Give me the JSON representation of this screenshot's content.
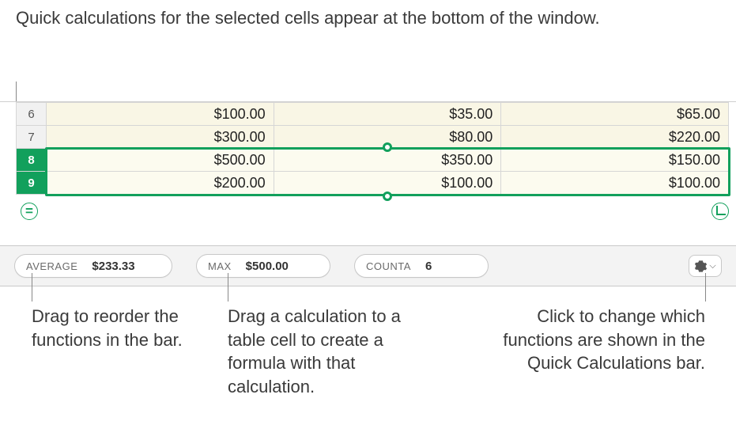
{
  "callouts": {
    "top": "Quick calculations for the selected cells appear at the bottom of the window.",
    "bottom_left": "Drag to reorder the functions in the bar.",
    "bottom_mid": "Drag a calculation to a table cell to create a formula with that calculation.",
    "bottom_right": "Click to change which functions are shown in the Quick Calculations bar."
  },
  "sheet": {
    "rows": [
      {
        "num": "6",
        "selected": false,
        "cells": [
          "$100.00",
          "$35.00",
          "$65.00"
        ]
      },
      {
        "num": "7",
        "selected": false,
        "cells": [
          "$300.00",
          "$80.00",
          "$220.00"
        ]
      },
      {
        "num": "8",
        "selected": true,
        "cells": [
          "$500.00",
          "$350.00",
          "$150.00"
        ]
      },
      {
        "num": "9",
        "selected": true,
        "cells": [
          "$200.00",
          "$100.00",
          "$100.00"
        ]
      }
    ],
    "colors": {
      "cell_bg": "#f9f6e5",
      "hdr_bg": "#f1f1f1",
      "sel_hdr_bg": "#12a05c",
      "border": "#d6d6d6",
      "sel_border": "#12a05c"
    }
  },
  "quickcalc": {
    "pills": [
      {
        "label": "AVERAGE",
        "value": "$233.33"
      },
      {
        "label": "MAX",
        "value": "$500.00"
      },
      {
        "label": "COUNTA",
        "value": "6"
      }
    ],
    "bar_bg": "#f3f3f3"
  },
  "equals_symbol": "="
}
